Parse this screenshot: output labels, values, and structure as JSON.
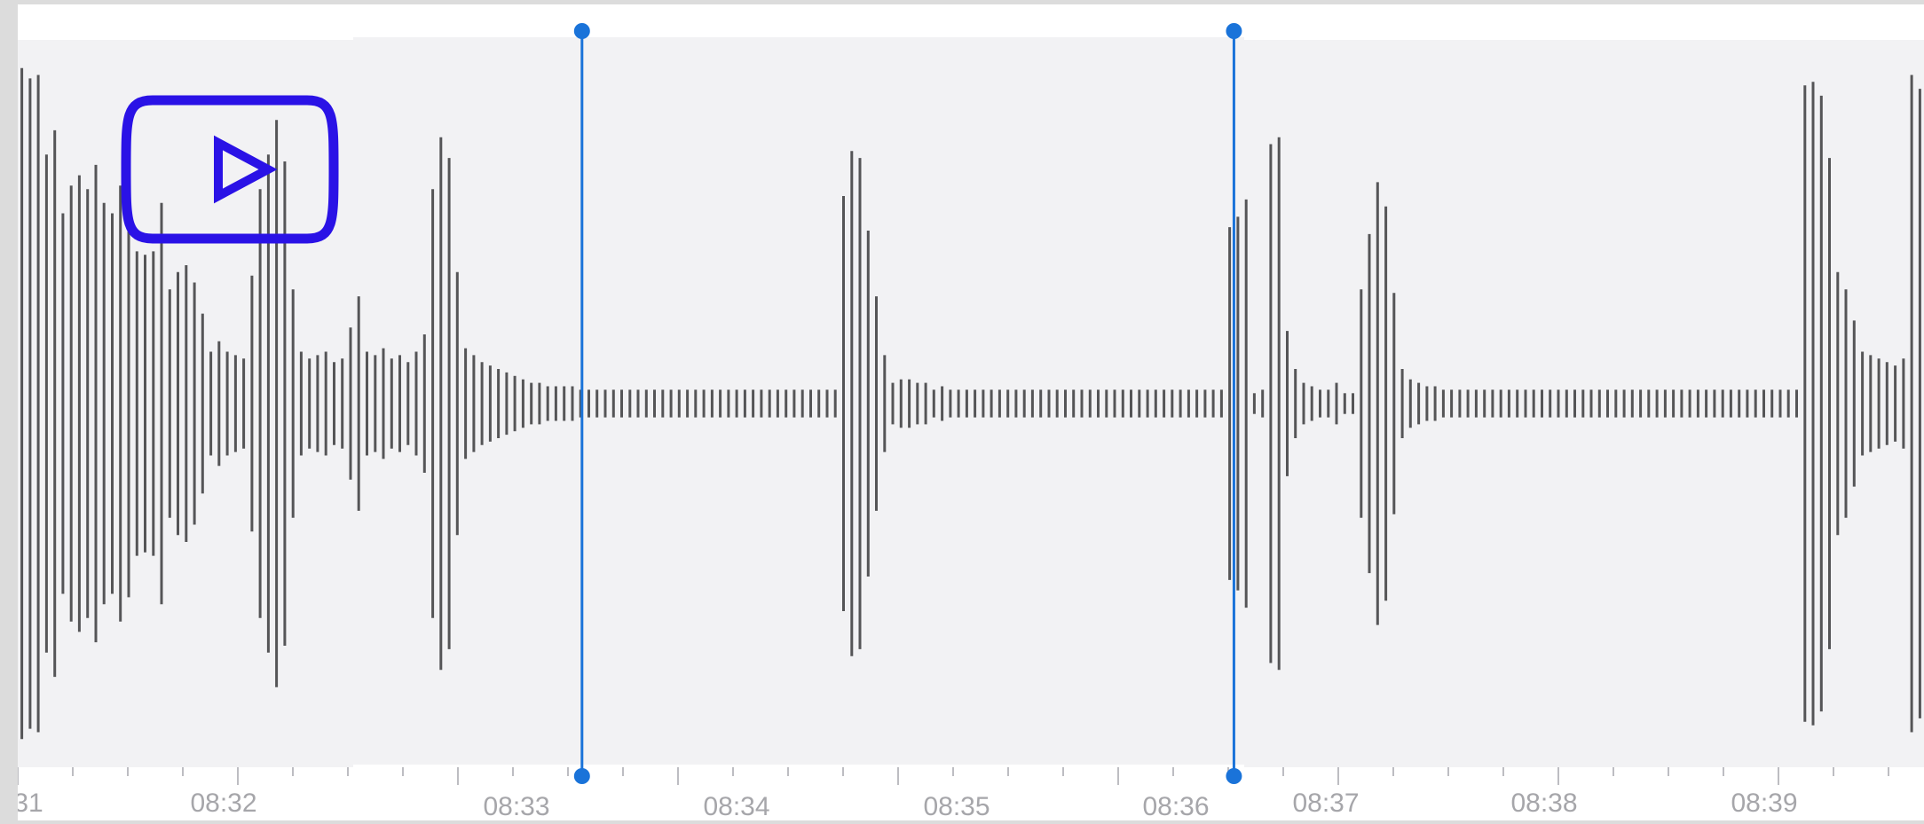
{
  "timeline": {
    "labels": [
      "31",
      "08:32",
      "08:33",
      "08:34",
      "08:35",
      "08:36",
      "08:37",
      "08:38",
      "08:39"
    ]
  },
  "colors": {
    "waveform": "#555557",
    "selection": "#1a73d9",
    "play_badge": "#2a12e6",
    "panel": "#f2f2f4",
    "tick": "#bdbdc2"
  },
  "icons": {
    "play_badge": "youtube-play-icon"
  },
  "waveform": {
    "amplitudes": [
      0.97,
      0.94,
      0.95,
      0.72,
      0.79,
      0.55,
      0.63,
      0.66,
      0.62,
      0.69,
      0.58,
      0.55,
      0.63,
      0.56,
      0.44,
      0.43,
      0.44,
      0.58,
      0.33,
      0.38,
      0.4,
      0.35,
      0.26,
      0.15,
      0.18,
      0.15,
      0.14,
      0.13,
      0.37,
      0.62,
      0.72,
      0.82,
      0.7,
      0.33,
      0.15,
      0.13,
      0.14,
      0.15,
      0.12,
      0.13,
      0.22,
      0.31,
      0.15,
      0.14,
      0.16,
      0.13,
      0.14,
      0.12,
      0.15,
      0.2,
      0.62,
      0.77,
      0.71,
      0.38,
      0.16,
      0.14,
      0.12,
      0.11,
      0.1,
      0.09,
      0.08,
      0.07,
      0.06,
      0.06,
      0.05,
      0.05,
      0.05,
      0.05,
      0.04,
      0.04,
      0.04,
      0.04,
      0.04,
      0.04,
      0.04,
      0.04,
      0.04,
      0.04,
      0.04,
      0.04,
      0.04,
      0.04,
      0.04,
      0.04,
      0.04,
      0.04,
      0.04,
      0.04,
      0.04,
      0.04,
      0.04,
      0.04,
      0.04,
      0.04,
      0.04,
      0.04,
      0.04,
      0.04,
      0.04,
      0.04,
      0.6,
      0.73,
      0.71,
      0.5,
      0.31,
      0.14,
      0.06,
      0.07,
      0.07,
      0.06,
      0.06,
      0.04,
      0.05,
      0.04,
      0.04,
      0.04,
      0.04,
      0.04,
      0.04,
      0.04,
      0.04,
      0.04,
      0.04,
      0.04,
      0.04,
      0.04,
      0.04,
      0.04,
      0.04,
      0.04,
      0.04,
      0.04,
      0.04,
      0.04,
      0.04,
      0.04,
      0.04,
      0.04,
      0.04,
      0.04,
      0.04,
      0.04,
      0.04,
      0.04,
      0.04,
      0.04,
      0.04,
      0.51,
      0.54,
      0.59,
      0.03,
      0.04,
      0.75,
      0.77,
      0.21,
      0.1,
      0.06,
      0.05,
      0.04,
      0.04,
      0.06,
      0.03,
      0.03,
      0.33,
      0.49,
      0.64,
      0.57,
      0.32,
      0.1,
      0.07,
      0.06,
      0.05,
      0.05,
      0.04,
      0.04,
      0.04,
      0.04,
      0.04,
      0.04,
      0.04,
      0.04,
      0.04,
      0.04,
      0.04,
      0.04,
      0.04,
      0.04,
      0.04,
      0.04,
      0.04,
      0.04,
      0.04,
      0.04,
      0.04,
      0.04,
      0.04,
      0.04,
      0.04,
      0.04,
      0.04,
      0.04,
      0.04,
      0.04,
      0.04,
      0.04,
      0.04,
      0.04,
      0.04,
      0.04,
      0.04,
      0.04,
      0.04,
      0.04,
      0.04,
      0.04,
      0.04,
      0.04,
      0.92,
      0.93,
      0.89,
      0.71,
      0.38,
      0.33,
      0.24,
      0.15,
      0.14,
      0.13,
      0.12,
      0.11,
      0.13,
      0.95,
      0.91
    ],
    "selection_start_fraction": 0.296,
    "selection_end_fraction": 0.638
  }
}
